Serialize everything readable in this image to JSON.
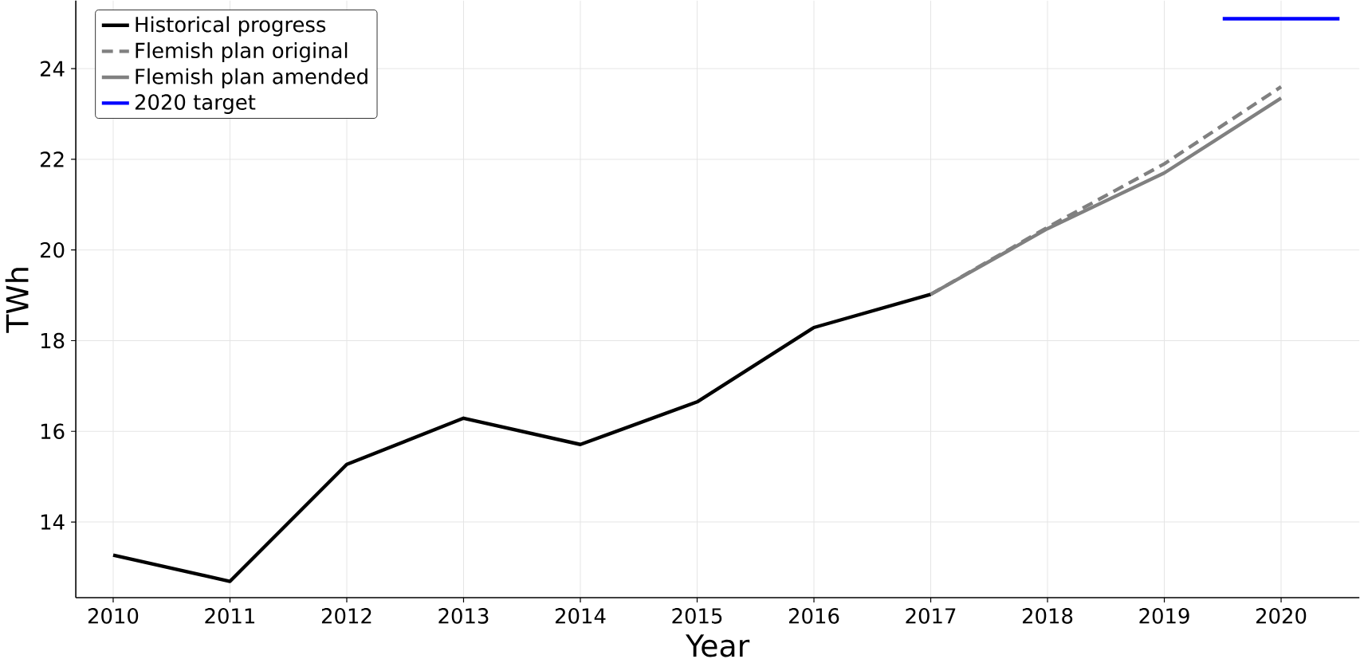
{
  "chart_data": {
    "type": "line",
    "xlabel": "Year",
    "ylabel": "TWh",
    "xlim": [
      2009.68,
      2020.67
    ],
    "ylim": [
      12.33,
      25.5
    ],
    "xticks": [
      2010,
      2011,
      2012,
      2013,
      2014,
      2015,
      2016,
      2017,
      2018,
      2019,
      2020
    ],
    "yticks": [
      14,
      16,
      18,
      20,
      22,
      24
    ],
    "grid": true,
    "legend": "top left",
    "series": [
      {
        "name": "Historical progress",
        "color": "#000000",
        "line_style": "solid",
        "x": [
          2010,
          2011,
          2012,
          2013,
          2014,
          2015,
          2016,
          2017
        ],
        "values": [
          13.27,
          12.69,
          15.27,
          16.29,
          15.71,
          16.65,
          18.29,
          19.02
        ]
      },
      {
        "name": "Flemish plan original",
        "color": "#808080",
        "line_style": "dashed",
        "x": [
          2017,
          2018,
          2019,
          2020
        ],
        "values": [
          19.02,
          20.5,
          21.9,
          23.6
        ]
      },
      {
        "name": "Flemish plan amended",
        "color": "#808080",
        "line_style": "solid",
        "x": [
          2017,
          2018,
          2019,
          2020
        ],
        "values": [
          19.02,
          20.47,
          21.7,
          23.35
        ]
      },
      {
        "name": "2020 target",
        "color": "#0000ff",
        "line_style": "solid",
        "x": [
          2019.5,
          2020.5
        ],
        "values": [
          25.1,
          25.1
        ]
      }
    ]
  }
}
